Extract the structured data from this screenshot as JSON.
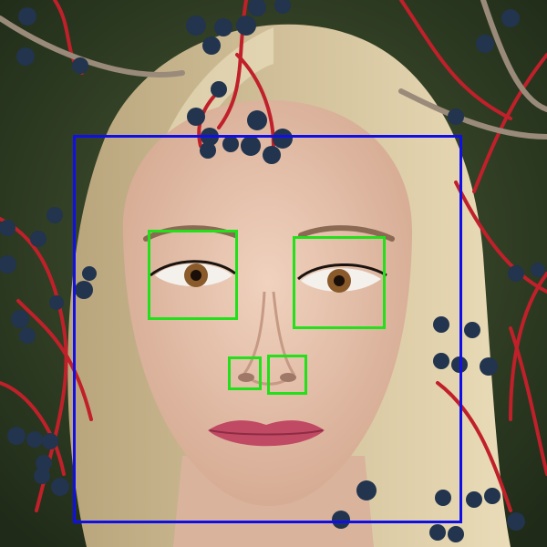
{
  "image": {
    "subject": "photo-portrait",
    "colors": {
      "background": "#2f3f26",
      "hair": "#d8c8a0",
      "skin": "#e6c2ac",
      "lips": "#c04a64",
      "berries": "#22344e",
      "stems": "#c0202a",
      "face_box": "#1010e6",
      "feature_box": "#22e01a"
    }
  },
  "detections": [
    {
      "label": "face",
      "color": "#1010e6"
    },
    {
      "label": "eye",
      "color": "#22e01a"
    },
    {
      "label": "eye",
      "color": "#22e01a"
    },
    {
      "label": "nose",
      "color": "#22e01a"
    },
    {
      "label": "nose",
      "color": "#22e01a"
    }
  ]
}
